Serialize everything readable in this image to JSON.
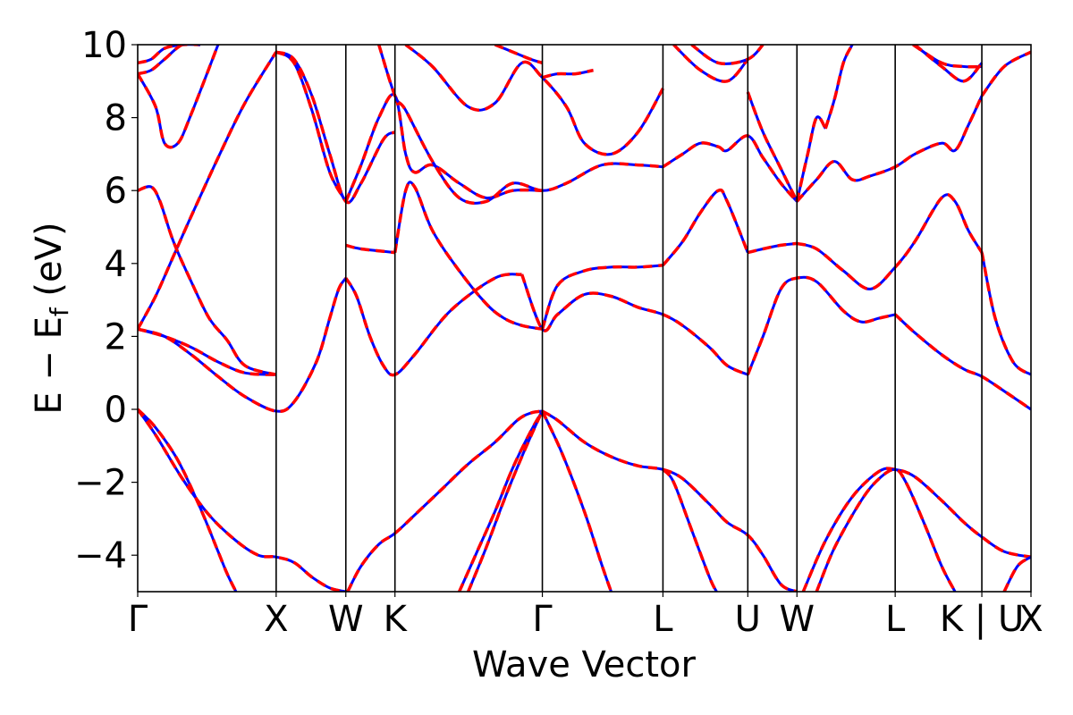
{
  "chart_data": {
    "type": "line",
    "title": "",
    "xlabel": "Wave Vector",
    "ylabel_parts": {
      "main": "E − E",
      "sub": "f",
      "unit": " (eV)"
    },
    "ylim": [
      -5,
      10
    ],
    "xlim": [
      0,
      1
    ],
    "yticks": [
      -4,
      -2,
      0,
      2,
      4,
      6,
      8,
      10
    ],
    "ytick_labels": [
      "−4",
      "−2",
      "0",
      "2",
      "4",
      "6",
      "8",
      "10"
    ],
    "kpoints": [
      {
        "label": "Γ",
        "x": 0.0
      },
      {
        "label": "X",
        "x": 0.155
      },
      {
        "label": "W",
        "x": 0.233
      },
      {
        "label": "K",
        "x": 0.288
      },
      {
        "label": "Γ",
        "x": 0.453
      },
      {
        "label": "L",
        "x": 0.588
      },
      {
        "label": "U",
        "x": 0.683
      },
      {
        "label": "W",
        "x": 0.738
      },
      {
        "label": "L",
        "x": 0.848
      },
      {
        "label": "K | U",
        "x": 0.945
      },
      {
        "label": "X",
        "x": 1.0
      }
    ],
    "grid": false,
    "legend": "none",
    "colors": {
      "series_a": "#0000ff",
      "series_b": "#ff0000"
    },
    "bands": [
      {
        "x": [
          0,
          0.02,
          0.05,
          0.08,
          0.11,
          0.135,
          0.155,
          0.175,
          0.195,
          0.215,
          0.233
        ],
        "y": [
          0,
          -0.7,
          -1.9,
          -2.9,
          -3.6,
          -4.0,
          -4.05,
          -4.2,
          -4.6,
          -4.9,
          -5.0
        ]
      },
      {
        "x": [
          0,
          0.02,
          0.045,
          0.07,
          0.09,
          0.1,
          0.11
        ],
        "y": [
          0,
          -0.5,
          -1.4,
          -2.7,
          -3.9,
          -4.5,
          -5.0
        ]
      },
      {
        "x": [
          0.235,
          0.25,
          0.27,
          0.288,
          0.31,
          0.34,
          0.37,
          0.4,
          0.425,
          0.44,
          0.453
        ],
        "y": [
          -5.0,
          -4.3,
          -3.7,
          -3.4,
          -2.9,
          -2.2,
          -1.5,
          -0.9,
          -0.3,
          -0.1,
          -0.05
        ]
      },
      {
        "x": [
          0.36,
          0.38,
          0.4,
          0.42,
          0.44,
          0.453
        ],
        "y": [
          -5.0,
          -3.9,
          -2.8,
          -1.6,
          -0.6,
          -0.05
        ]
      },
      {
        "x": [
          0.37,
          0.39,
          0.41,
          0.43,
          0.45,
          0.453
        ],
        "y": [
          -5.0,
          -3.8,
          -2.5,
          -1.3,
          -0.2,
          -0.05
        ]
      },
      {
        "x": [
          0.453,
          0.47,
          0.5,
          0.53,
          0.56,
          0.588,
          0.61,
          0.64,
          0.66,
          0.683,
          0.7,
          0.72,
          0.738
        ],
        "y": [
          -0.05,
          -0.3,
          -0.9,
          -1.3,
          -1.55,
          -1.65,
          -1.9,
          -2.6,
          -3.1,
          -3.45,
          -4.0,
          -4.8,
          -5.0
        ]
      },
      {
        "x": [
          0.453,
          0.475,
          0.5,
          0.52,
          0.53
        ],
        "y": [
          -0.05,
          -1.2,
          -2.8,
          -4.3,
          -5.0
        ]
      },
      {
        "x": [
          0.588,
          0.6,
          0.62,
          0.64,
          0.648
        ],
        "y": [
          -1.65,
          -2.0,
          -3.3,
          -4.6,
          -5.0
        ]
      },
      {
        "x": [
          0.745,
          0.77,
          0.8,
          0.83,
          0.848,
          0.87,
          0.9,
          0.925,
          0.945,
          0.97,
          1.0
        ],
        "y": [
          -5.0,
          -3.6,
          -2.4,
          -1.7,
          -1.65,
          -1.85,
          -2.5,
          -3.1,
          -3.5,
          -3.9,
          -4.05
        ]
      },
      {
        "x": [
          0.76,
          0.78,
          0.81,
          0.83,
          0.848,
          0.86,
          0.88,
          0.9,
          0.915
        ],
        "y": [
          -5.0,
          -3.8,
          -2.5,
          -1.9,
          -1.65,
          -2.0,
          -3.1,
          -4.3,
          -5.0
        ]
      },
      {
        "x": [
          0.97,
          0.985,
          1.0
        ],
        "y": [
          -5.0,
          -4.3,
          -4.05
        ]
      },
      {
        "x": [
          0,
          0.03,
          0.06,
          0.09,
          0.12,
          0.155,
          0.175,
          0.2,
          0.215,
          0.225,
          0.233
        ],
        "y": [
          2.2,
          2.0,
          1.5,
          0.9,
          0.35,
          -0.05,
          0.2,
          1.3,
          2.5,
          3.3,
          3.6
        ]
      },
      {
        "x": [
          0.233,
          0.245,
          0.26,
          0.275,
          0.288,
          0.31,
          0.35,
          0.4,
          0.43
        ],
        "y": [
          3.6,
          3.1,
          2.0,
          1.2,
          0.95,
          1.5,
          2.7,
          3.6,
          3.7
        ]
      },
      {
        "x": [
          0.43,
          0.453,
          0.47,
          0.5,
          0.53,
          0.56,
          0.588,
          0.61,
          0.64,
          0.66,
          0.683
        ],
        "y": [
          3.7,
          2.2,
          2.6,
          3.15,
          3.1,
          2.8,
          2.6,
          2.3,
          1.7,
          1.2,
          0.95
        ]
      },
      {
        "x": [
          0,
          0.03,
          0.06,
          0.09,
          0.12,
          0.155
        ],
        "y": [
          2.2,
          2.0,
          1.7,
          1.3,
          1.0,
          0.95
        ]
      },
      {
        "x": [
          0.683,
          0.7,
          0.72,
          0.738,
          0.76,
          0.79,
          0.81,
          0.83,
          0.848
        ],
        "y": [
          0.95,
          2.0,
          3.3,
          3.6,
          3.5,
          2.7,
          2.4,
          2.5,
          2.6
        ]
      },
      {
        "x": [
          0.848,
          0.87,
          0.9,
          0.925,
          0.945,
          0.97,
          1.0
        ],
        "y": [
          2.6,
          2.1,
          1.5,
          1.1,
          0.9,
          0.5,
          0
        ]
      },
      {
        "x": [
          0,
          0.02,
          0.04,
          0.06,
          0.09,
          0.12,
          0.155
        ],
        "y": [
          2.2,
          3.1,
          4.2,
          5.3,
          6.9,
          8.4,
          9.8
        ]
      },
      {
        "x": [
          0.155,
          0.175,
          0.195,
          0.215,
          0.233,
          0.25,
          0.275,
          0.288
        ],
        "y": [
          9.8,
          9.6,
          8.6,
          7.0,
          5.7,
          6.2,
          7.4,
          7.6
        ]
      },
      {
        "x": [
          0.288,
          0.3,
          0.31,
          0.33,
          0.36,
          0.39,
          0.41,
          0.43,
          0.453
        ],
        "y": [
          4.3,
          6.0,
          6.1,
          4.9,
          3.8,
          2.9,
          2.5,
          2.3,
          2.2
        ]
      },
      {
        "x": [
          0.233,
          0.25,
          0.288
        ],
        "y": [
          4.5,
          4.4,
          4.3
        ]
      },
      {
        "x": [
          0.453,
          0.47,
          0.5,
          0.53,
          0.56,
          0.588
        ],
        "y": [
          2.2,
          3.4,
          3.8,
          3.9,
          3.9,
          3.95
        ]
      },
      {
        "x": [
          0.588,
          0.61,
          0.63,
          0.65,
          0.66,
          0.683
        ],
        "y": [
          3.95,
          4.6,
          5.4,
          6.0,
          5.7,
          4.3
        ]
      },
      {
        "x": [
          0.683,
          0.7,
          0.72,
          0.738
        ],
        "y": [
          4.3,
          4.4,
          4.5,
          4.55
        ]
      },
      {
        "x": [
          0.738,
          0.76,
          0.79,
          0.82,
          0.848,
          0.87,
          0.9,
          0.915,
          0.93,
          0.945
        ],
        "y": [
          4.55,
          4.4,
          3.8,
          3.3,
          3.9,
          4.6,
          5.8,
          5.7,
          4.9,
          4.3
        ]
      },
      {
        "x": [
          0,
          0.015,
          0.025,
          0.04,
          0.06,
          0.08,
          0.1,
          0.12,
          0.155
        ],
        "y": [
          6.0,
          6.1,
          5.7,
          4.6,
          3.5,
          2.5,
          1.9,
          1.2,
          0.95
        ]
      },
      {
        "x": [
          0,
          0.02,
          0.03,
          0.045,
          0.06,
          0.09
        ],
        "y": [
          9.2,
          8.3,
          7.3,
          7.3,
          8.1,
          10.0
        ]
      },
      {
        "x": [
          0,
          0.015,
          0.03,
          0.05,
          0.07
        ],
        "y": [
          9.5,
          9.6,
          9.9,
          10.0,
          10.0
        ]
      },
      {
        "x": [
          0,
          0.015,
          0.03,
          0.05,
          0.07
        ],
        "y": [
          9.2,
          9.3,
          9.6,
          10.0,
          10.0
        ]
      },
      {
        "x": [
          0.155,
          0.175,
          0.195,
          0.215,
          0.233
        ],
        "y": [
          9.8,
          9.5,
          8.2,
          6.5,
          5.7
        ]
      },
      {
        "x": [
          0.233,
          0.25,
          0.27,
          0.288,
          0.3,
          0.31,
          0.33,
          0.36,
          0.39,
          0.42,
          0.453
        ],
        "y": [
          5.7,
          6.7,
          8.0,
          8.6,
          7.0,
          6.5,
          6.7,
          6.2,
          5.8,
          6.0,
          6.0
        ]
      },
      {
        "x": [
          0.27,
          0.288,
          0.3,
          0.33,
          0.36,
          0.39,
          0.42,
          0.453,
          0.48,
          0.52,
          0.56,
          0.588
        ],
        "y": [
          10.0,
          8.6,
          8.2,
          6.8,
          5.8,
          5.7,
          6.2,
          6.0,
          6.2,
          6.7,
          6.7,
          6.65
        ]
      },
      {
        "x": [
          0.588,
          0.61,
          0.63,
          0.65,
          0.66,
          0.683,
          0.7,
          0.72,
          0.738
        ],
        "y": [
          6.65,
          7.0,
          7.3,
          7.2,
          7.1,
          7.5,
          6.9,
          6.2,
          5.7
        ]
      },
      {
        "x": [
          0.738,
          0.76,
          0.78,
          0.8,
          0.82,
          0.848,
          0.87,
          0.9,
          0.915,
          0.93,
          0.945
        ],
        "y": [
          5.7,
          6.3,
          6.8,
          6.3,
          6.4,
          6.65,
          7.0,
          7.3,
          7.1,
          7.8,
          8.6
        ]
      },
      {
        "x": [
          0.945,
          0.97,
          1.0
        ],
        "y": [
          8.6,
          9.4,
          9.8
        ]
      },
      {
        "x": [
          0.945,
          0.96,
          0.98,
          1.0
        ],
        "y": [
          4.3,
          2.5,
          1.3,
          0.95
        ]
      },
      {
        "x": [
          0.3,
          0.33,
          0.37,
          0.4,
          0.43,
          0.453,
          0.48,
          0.5,
          0.53,
          0.56,
          0.588
        ],
        "y": [
          10.0,
          9.4,
          8.3,
          8.4,
          9.5,
          9.1,
          8.3,
          7.3,
          7.0,
          7.6,
          8.8
        ]
      },
      {
        "x": [
          0.453,
          0.47,
          0.49,
          0.51
        ],
        "y": [
          9.1,
          9.2,
          9.2,
          9.3
        ]
      },
      {
        "x": [
          0.4,
          0.42,
          0.44,
          0.453
        ],
        "y": [
          10.0,
          9.8,
          9.6,
          9.5
        ]
      },
      {
        "x": [
          0.683,
          0.7,
          0.72,
          0.738
        ],
        "y": [
          8.7,
          7.6,
          6.6,
          5.7
        ]
      },
      {
        "x": [
          0.738,
          0.75,
          0.76,
          0.77
        ],
        "y": [
          5.7,
          7.0,
          8.0,
          7.7
        ]
      },
      {
        "x": [
          0.77,
          0.78,
          0.79,
          0.8
        ],
        "y": [
          7.7,
          8.5,
          9.5,
          10.0
        ]
      },
      {
        "x": [
          0.6,
          0.63,
          0.66,
          0.683
        ],
        "y": [
          10.0,
          9.3,
          9.0,
          9.6
        ]
      },
      {
        "x": [
          0.62,
          0.65,
          0.683,
          0.7
        ],
        "y": [
          10.0,
          9.5,
          9.6,
          10.0
        ]
      },
      {
        "x": [
          0.868,
          0.9,
          0.925,
          0.945
        ],
        "y": [
          10.0,
          9.5,
          9.4,
          9.4
        ]
      },
      {
        "x": [
          0.87,
          0.9,
          0.925,
          0.945
        ],
        "y": [
          10.0,
          9.4,
          9.0,
          9.5
        ]
      }
    ]
  }
}
